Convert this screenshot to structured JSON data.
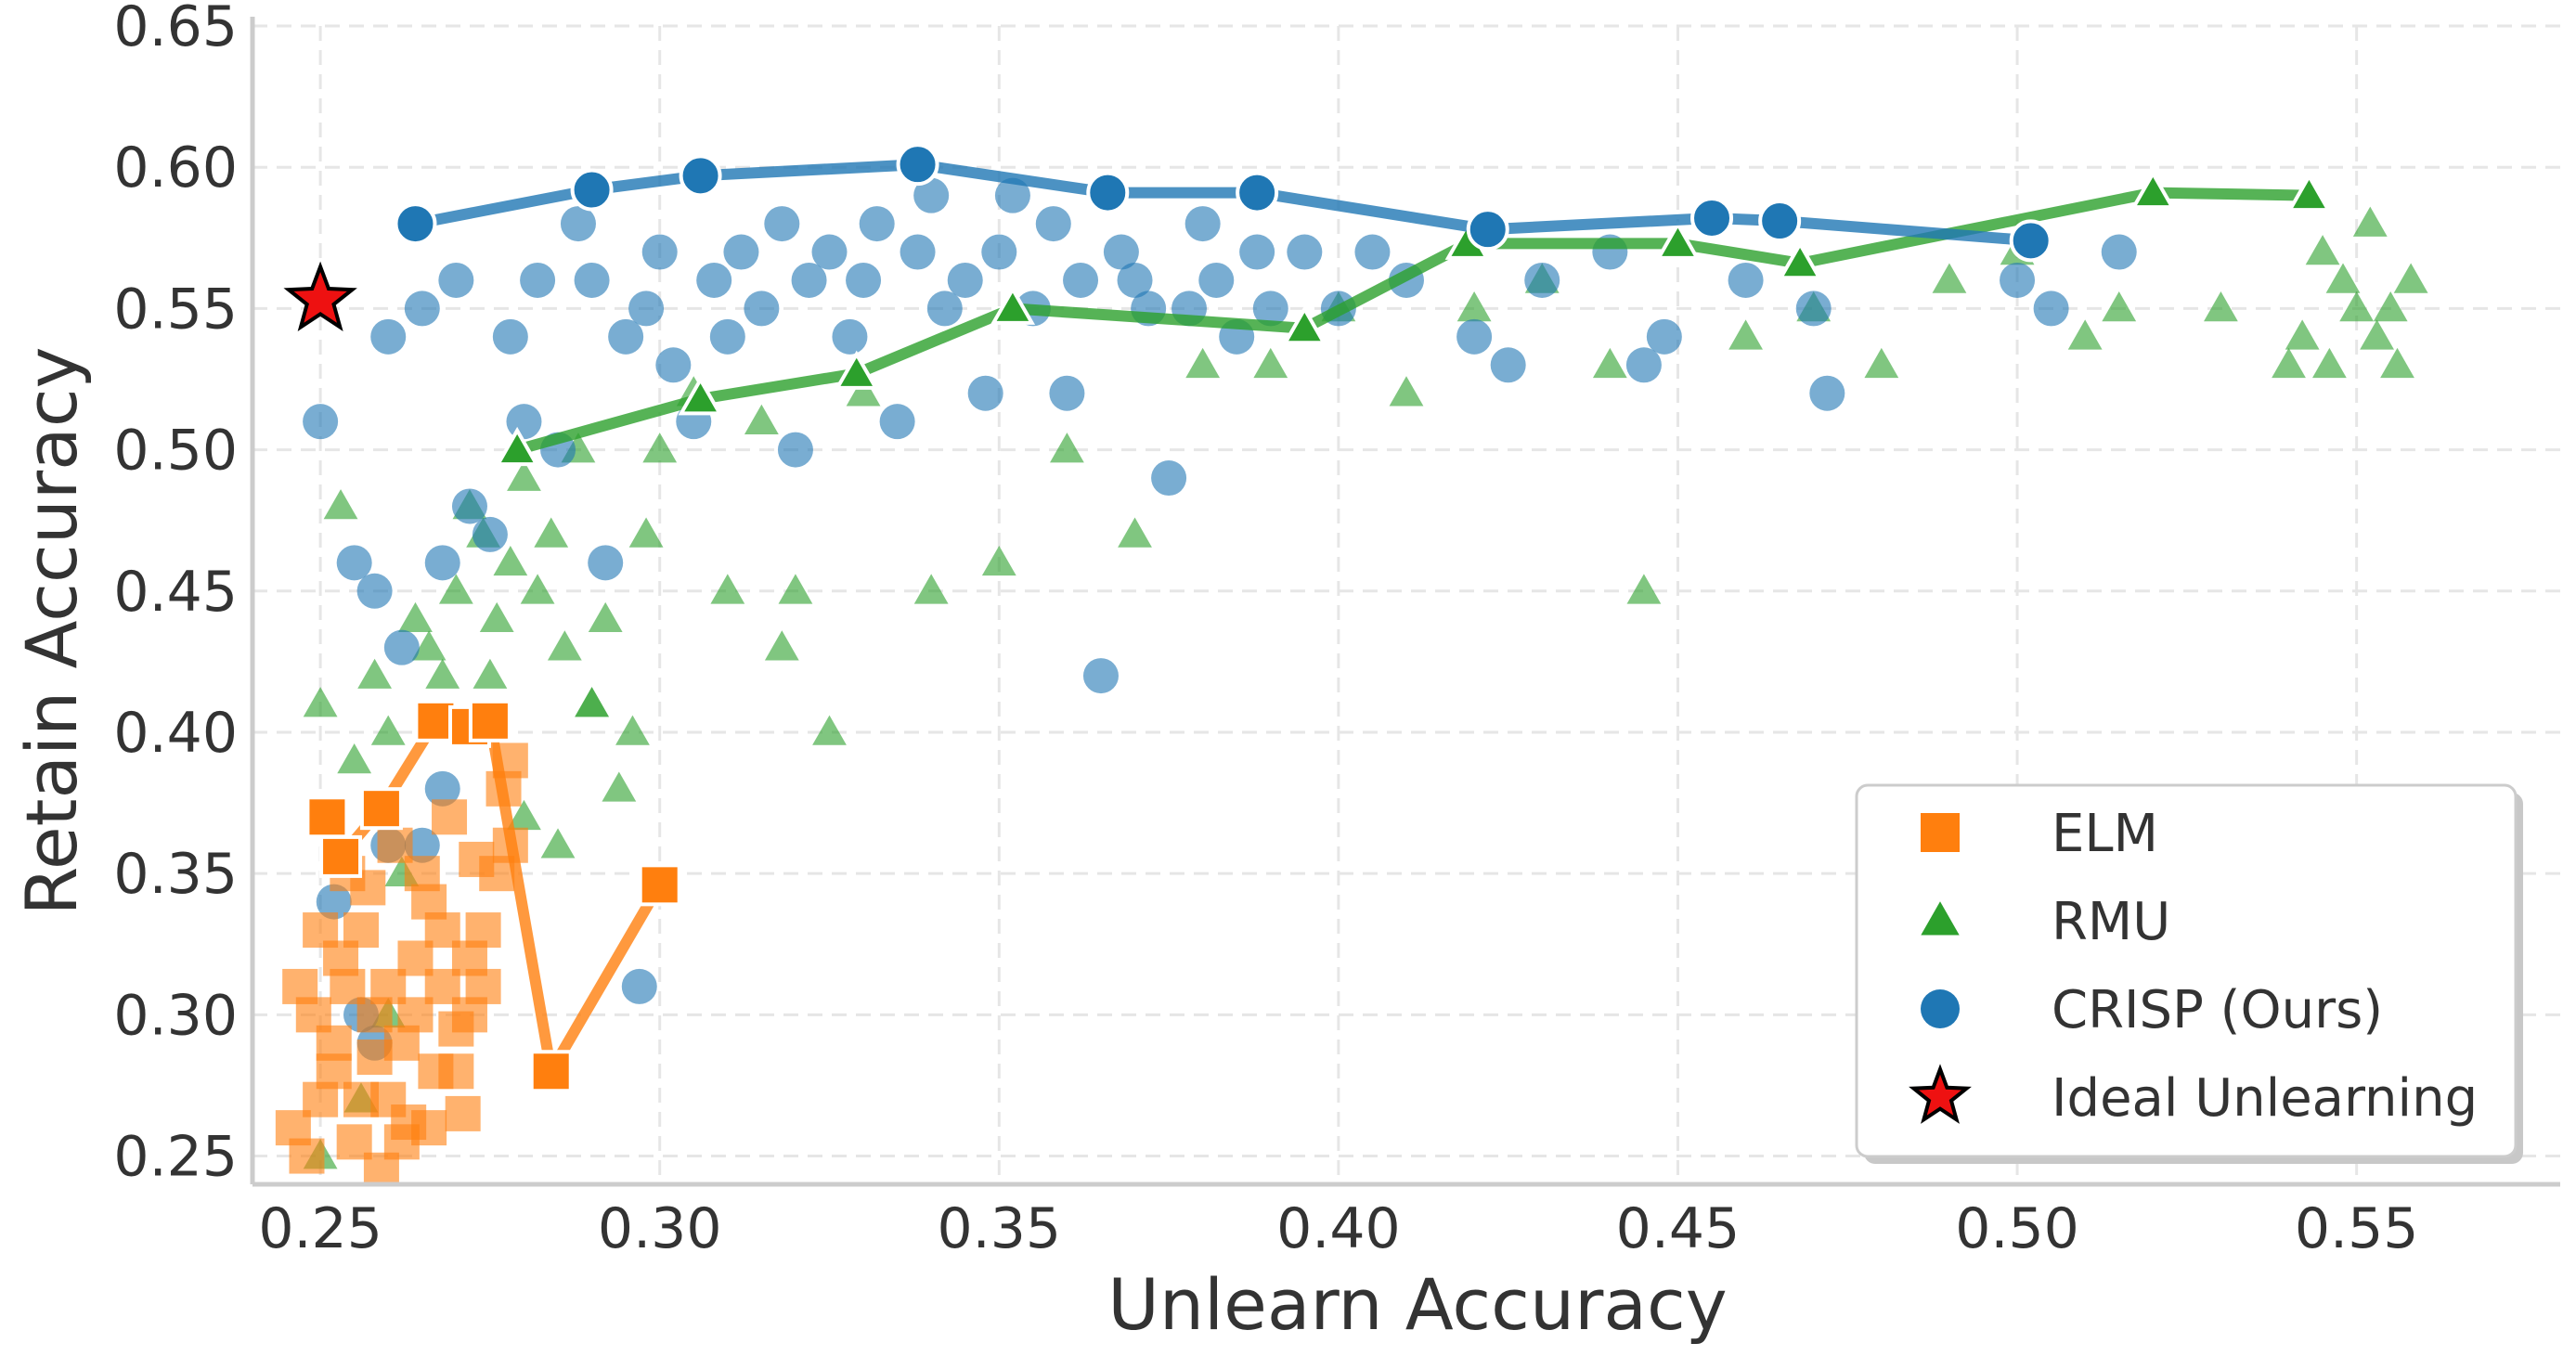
{
  "chart_data": {
    "type": "scatter",
    "xlabel": "Unlearn Accuracy",
    "ylabel": "Retain Accuracy",
    "xlim": [
      0.24,
      0.58
    ],
    "ylim": [
      0.24,
      0.65
    ],
    "xticks": [
      0.25,
      0.3,
      0.35,
      0.4,
      0.45,
      0.5,
      0.55
    ],
    "yticks": [
      0.25,
      0.3,
      0.35,
      0.4,
      0.45,
      0.5,
      0.55,
      0.6,
      0.65
    ],
    "xtick_labels": [
      "0.25",
      "0.30",
      "0.35",
      "0.40",
      "0.45",
      "0.50",
      "0.55"
    ],
    "ytick_labels": [
      "0.25",
      "0.30",
      "0.35",
      "0.40",
      "0.45",
      "0.50",
      "0.55",
      "0.60",
      "0.65"
    ],
    "grid": true,
    "legend_position": "bottom-right",
    "legend": [
      {
        "label": "ELM",
        "marker": "square",
        "color": "#ff7f0e"
      },
      {
        "label": "RMU",
        "marker": "triangle",
        "color": "#2ca02c"
      },
      {
        "label": "CRISP (Ours)",
        "marker": "circle",
        "color": "#1f77b4"
      },
      {
        "label": "Ideal Unlearning",
        "marker": "star",
        "color": "#ee1111"
      }
    ],
    "series": [
      {
        "name": "ELM",
        "marker": "square",
        "color": "#ff7f0e",
        "points": [
          [
            0.251,
            0.37
          ],
          [
            0.253,
            0.356
          ],
          [
            0.259,
            0.373
          ],
          [
            0.267,
            0.404
          ],
          [
            0.272,
            0.402
          ],
          [
            0.275,
            0.404
          ],
          [
            0.278,
            0.36
          ],
          [
            0.284,
            0.28
          ],
          [
            0.3,
            0.346
          ],
          [
            0.246,
            0.26
          ],
          [
            0.248,
            0.25
          ],
          [
            0.25,
            0.27
          ],
          [
            0.252,
            0.29
          ],
          [
            0.254,
            0.31
          ],
          [
            0.256,
            0.33
          ],
          [
            0.258,
            0.3
          ],
          [
            0.26,
            0.27
          ],
          [
            0.262,
            0.29
          ],
          [
            0.264,
            0.32
          ],
          [
            0.266,
            0.34
          ],
          [
            0.268,
            0.31
          ],
          [
            0.27,
            0.28
          ],
          [
            0.272,
            0.3
          ],
          [
            0.274,
            0.33
          ],
          [
            0.255,
            0.255
          ],
          [
            0.259,
            0.245
          ],
          [
            0.263,
            0.262
          ],
          [
            0.267,
            0.28
          ],
          [
            0.271,
            0.265
          ],
          [
            0.249,
            0.3
          ],
          [
            0.253,
            0.32
          ],
          [
            0.257,
            0.345
          ],
          [
            0.261,
            0.36
          ],
          [
            0.265,
            0.35
          ],
          [
            0.269,
            0.37
          ],
          [
            0.273,
            0.355
          ],
          [
            0.277,
            0.38
          ],
          [
            0.252,
            0.28
          ],
          [
            0.256,
            0.27
          ],
          [
            0.26,
            0.31
          ],
          [
            0.264,
            0.3
          ],
          [
            0.268,
            0.33
          ],
          [
            0.272,
            0.32
          ],
          [
            0.276,
            0.35
          ],
          [
            0.25,
            0.33
          ],
          [
            0.254,
            0.35
          ],
          [
            0.258,
            0.285
          ],
          [
            0.262,
            0.255
          ],
          [
            0.266,
            0.26
          ],
          [
            0.27,
            0.295
          ],
          [
            0.274,
            0.31
          ],
          [
            0.278,
            0.39
          ],
          [
            0.247,
            0.31
          ]
        ],
        "curve": [
          [
            0.251,
            0.37
          ],
          [
            0.253,
            0.356
          ],
          [
            0.259,
            0.373
          ],
          [
            0.267,
            0.404
          ],
          [
            0.272,
            0.402
          ],
          [
            0.275,
            0.404
          ],
          [
            0.284,
            0.28
          ],
          [
            0.3,
            0.346
          ]
        ]
      },
      {
        "name": "RMU",
        "marker": "triangle",
        "color": "#2ca02c",
        "points": [
          [
            0.25,
            0.41
          ],
          [
            0.253,
            0.48
          ],
          [
            0.255,
            0.39
          ],
          [
            0.258,
            0.42
          ],
          [
            0.26,
            0.4
          ],
          [
            0.262,
            0.35
          ],
          [
            0.264,
            0.44
          ],
          [
            0.266,
            0.43
          ],
          [
            0.268,
            0.42
          ],
          [
            0.27,
            0.45
          ],
          [
            0.272,
            0.48
          ],
          [
            0.274,
            0.47
          ],
          [
            0.276,
            0.44
          ],
          [
            0.278,
            0.46
          ],
          [
            0.28,
            0.49
          ],
          [
            0.282,
            0.45
          ],
          [
            0.284,
            0.47
          ],
          [
            0.286,
            0.43
          ],
          [
            0.288,
            0.5
          ],
          [
            0.29,
            0.41
          ],
          [
            0.292,
            0.44
          ],
          [
            0.294,
            0.38
          ],
          [
            0.296,
            0.4
          ],
          [
            0.298,
            0.47
          ],
          [
            0.3,
            0.5
          ],
          [
            0.31,
            0.45
          ],
          [
            0.32,
            0.45
          ],
          [
            0.33,
            0.52
          ],
          [
            0.34,
            0.45
          ],
          [
            0.35,
            0.46
          ],
          [
            0.36,
            0.5
          ],
          [
            0.37,
            0.47
          ],
          [
            0.38,
            0.53
          ],
          [
            0.39,
            0.53
          ],
          [
            0.4,
            0.55
          ],
          [
            0.41,
            0.52
          ],
          [
            0.42,
            0.55
          ],
          [
            0.43,
            0.56
          ],
          [
            0.44,
            0.53
          ],
          [
            0.445,
            0.45
          ],
          [
            0.46,
            0.54
          ],
          [
            0.47,
            0.55
          ],
          [
            0.48,
            0.53
          ],
          [
            0.49,
            0.56
          ],
          [
            0.5,
            0.57
          ],
          [
            0.51,
            0.54
          ],
          [
            0.515,
            0.55
          ],
          [
            0.53,
            0.55
          ],
          [
            0.54,
            0.53
          ],
          [
            0.545,
            0.57
          ],
          [
            0.55,
            0.55
          ],
          [
            0.553,
            0.54
          ],
          [
            0.556,
            0.53
          ],
          [
            0.558,
            0.56
          ],
          [
            0.548,
            0.56
          ],
          [
            0.552,
            0.58
          ],
          [
            0.555,
            0.55
          ],
          [
            0.542,
            0.54
          ],
          [
            0.546,
            0.53
          ],
          [
            0.25,
            0.25
          ],
          [
            0.256,
            0.27
          ],
          [
            0.26,
            0.3
          ],
          [
            0.275,
            0.42
          ],
          [
            0.28,
            0.37
          ],
          [
            0.285,
            0.36
          ],
          [
            0.29,
            0.41
          ],
          [
            0.305,
            0.52
          ],
          [
            0.315,
            0.51
          ],
          [
            0.325,
            0.4
          ],
          [
            0.318,
            0.43
          ]
        ],
        "curve": [
          [
            0.279,
            0.5
          ],
          [
            0.306,
            0.518
          ],
          [
            0.329,
            0.527
          ],
          [
            0.352,
            0.55
          ],
          [
            0.395,
            0.543
          ],
          [
            0.419,
            0.573
          ],
          [
            0.45,
            0.573
          ],
          [
            0.468,
            0.566
          ],
          [
            0.52,
            0.591
          ],
          [
            0.543,
            0.59
          ]
        ]
      },
      {
        "name": "CRISP (Ours)",
        "marker": "circle",
        "color": "#1f77b4",
        "points": [
          [
            0.25,
            0.51
          ],
          [
            0.255,
            0.46
          ],
          [
            0.258,
            0.45
          ],
          [
            0.26,
            0.54
          ],
          [
            0.262,
            0.43
          ],
          [
            0.265,
            0.55
          ],
          [
            0.268,
            0.46
          ],
          [
            0.27,
            0.56
          ],
          [
            0.272,
            0.48
          ],
          [
            0.275,
            0.47
          ],
          [
            0.278,
            0.54
          ],
          [
            0.28,
            0.51
          ],
          [
            0.282,
            0.56
          ],
          [
            0.285,
            0.5
          ],
          [
            0.288,
            0.58
          ],
          [
            0.29,
            0.56
          ],
          [
            0.292,
            0.46
          ],
          [
            0.295,
            0.54
          ],
          [
            0.298,
            0.55
          ],
          [
            0.3,
            0.57
          ],
          [
            0.302,
            0.53
          ],
          [
            0.305,
            0.51
          ],
          [
            0.308,
            0.56
          ],
          [
            0.31,
            0.54
          ],
          [
            0.312,
            0.57
          ],
          [
            0.315,
            0.55
          ],
          [
            0.318,
            0.58
          ],
          [
            0.32,
            0.5
          ],
          [
            0.322,
            0.56
          ],
          [
            0.325,
            0.57
          ],
          [
            0.328,
            0.54
          ],
          [
            0.33,
            0.56
          ],
          [
            0.332,
            0.58
          ],
          [
            0.335,
            0.51
          ],
          [
            0.338,
            0.57
          ],
          [
            0.34,
            0.59
          ],
          [
            0.342,
            0.55
          ],
          [
            0.345,
            0.56
          ],
          [
            0.348,
            0.52
          ],
          [
            0.35,
            0.57
          ],
          [
            0.352,
            0.59
          ],
          [
            0.355,
            0.55
          ],
          [
            0.358,
            0.58
          ],
          [
            0.36,
            0.52
          ],
          [
            0.362,
            0.56
          ],
          [
            0.365,
            0.42
          ],
          [
            0.368,
            0.57
          ],
          [
            0.37,
            0.56
          ],
          [
            0.372,
            0.55
          ],
          [
            0.375,
            0.49
          ],
          [
            0.378,
            0.55
          ],
          [
            0.38,
            0.58
          ],
          [
            0.382,
            0.56
          ],
          [
            0.385,
            0.54
          ],
          [
            0.388,
            0.57
          ],
          [
            0.39,
            0.55
          ],
          [
            0.395,
            0.57
          ],
          [
            0.4,
            0.55
          ],
          [
            0.405,
            0.57
          ],
          [
            0.41,
            0.56
          ],
          [
            0.42,
            0.54
          ],
          [
            0.425,
            0.53
          ],
          [
            0.43,
            0.56
          ],
          [
            0.44,
            0.57
          ],
          [
            0.445,
            0.53
          ],
          [
            0.448,
            0.54
          ],
          [
            0.46,
            0.56
          ],
          [
            0.47,
            0.55
          ],
          [
            0.472,
            0.52
          ],
          [
            0.5,
            0.56
          ],
          [
            0.505,
            0.55
          ],
          [
            0.515,
            0.57
          ],
          [
            0.252,
            0.34
          ],
          [
            0.256,
            0.3
          ],
          [
            0.258,
            0.29
          ],
          [
            0.268,
            0.38
          ],
          [
            0.297,
            0.31
          ],
          [
            0.265,
            0.36
          ],
          [
            0.26,
            0.36
          ]
        ],
        "curve": [
          [
            0.264,
            0.58
          ],
          [
            0.29,
            0.592
          ],
          [
            0.306,
            0.597
          ],
          [
            0.338,
            0.601
          ],
          [
            0.366,
            0.591
          ],
          [
            0.388,
            0.591
          ],
          [
            0.422,
            0.578
          ],
          [
            0.455,
            0.582
          ],
          [
            0.465,
            0.581
          ],
          [
            0.502,
            0.574
          ]
        ]
      }
    ],
    "ideal_point": {
      "name": "Ideal Unlearning",
      "x": 0.25,
      "y": 0.553,
      "marker": "star",
      "color": "#ee1111"
    }
  }
}
